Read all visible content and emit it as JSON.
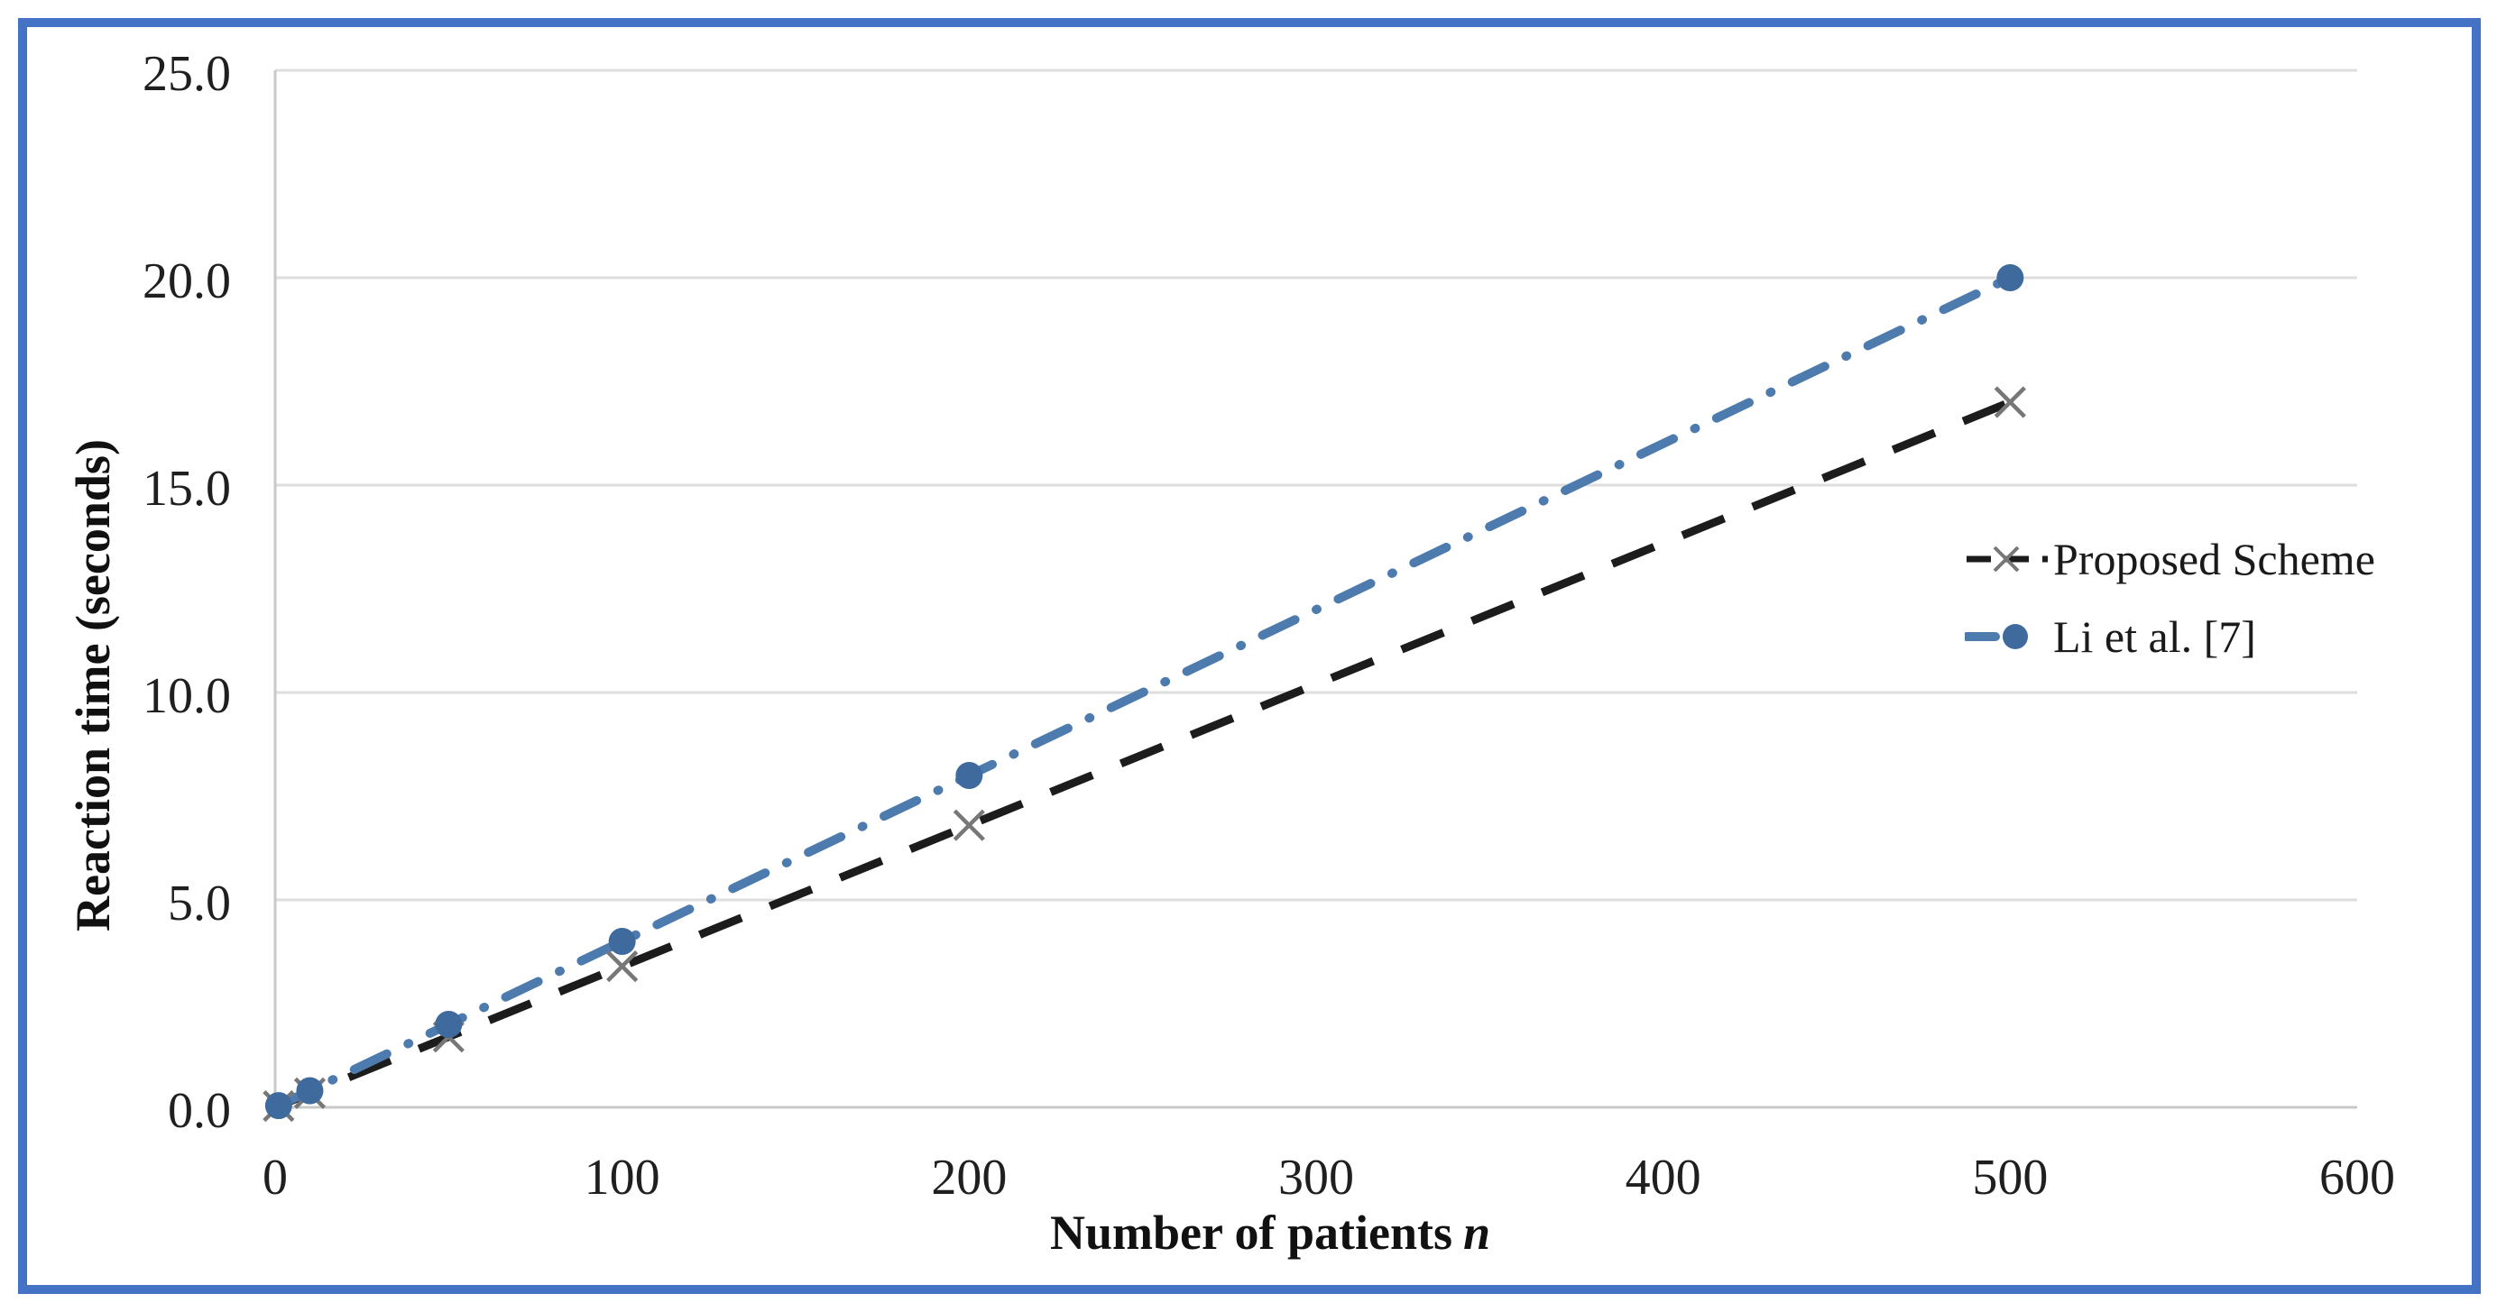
{
  "figure": {
    "border_color": "#4472C4",
    "background_color": "#FFFFFF"
  },
  "chart_data": {
    "type": "line",
    "title": "",
    "xlabel": "Number of patients",
    "xlabel_var": "n",
    "ylabel": "Reaction time (seconds)",
    "xlim": [
      0,
      600
    ],
    "ylim": [
      0,
      25
    ],
    "grid": "horizontal",
    "legend_position": "center-right",
    "x_ticks": [
      {
        "value": 0,
        "label": "0"
      },
      {
        "value": 100,
        "label": "100"
      },
      {
        "value": 200,
        "label": "200"
      },
      {
        "value": 300,
        "label": "300"
      },
      {
        "value": 400,
        "label": "400"
      },
      {
        "value": 500,
        "label": "500"
      },
      {
        "value": 600,
        "label": "600"
      }
    ],
    "y_ticks": [
      {
        "value": 0,
        "label": "0.0"
      },
      {
        "value": 5,
        "label": "5.0"
      },
      {
        "value": 10,
        "label": "10.0"
      },
      {
        "value": 15,
        "label": "15.0"
      },
      {
        "value": 20,
        "label": "20.0"
      },
      {
        "value": 25,
        "label": "25.0"
      }
    ],
    "x": [
      1,
      10,
      50,
      100,
      200,
      500
    ],
    "series": [
      {
        "name": "Proposed Scheme",
        "values": [
          0.03,
          0.34,
          1.7,
          3.4,
          6.8,
          17.0
        ],
        "color": "#1C1C1C",
        "line_style": "long-dash",
        "line_width": 9,
        "marker": "x",
        "marker_color": "#777777"
      },
      {
        "name": "Li et al. [7]",
        "values": [
          0.04,
          0.4,
          2.0,
          4.0,
          8.0,
          20.0
        ],
        "color": "#4E7BAE",
        "line_style": "dash-dot",
        "line_width": 10,
        "marker": "circle",
        "marker_color": "#3E6A9D"
      }
    ],
    "gridline_color": "#DEDEDE",
    "axis_line_color": "#C8C8C8"
  }
}
